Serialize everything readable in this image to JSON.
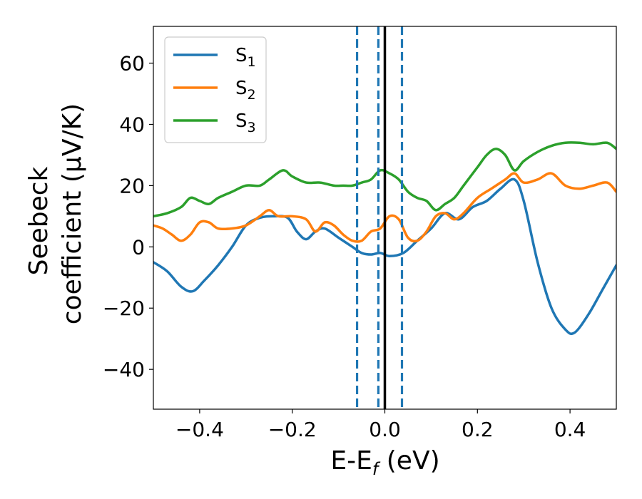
{
  "chart_data": {
    "type": "line",
    "xlabel": "E-E",
    "xlabel_sub": "f",
    "xlabel_unit": " (eV)",
    "ylabel_line1": "Seebeck",
    "ylabel_line2": "coefficient  (μV/K)",
    "xlim": [
      -0.5,
      0.5
    ],
    "ylim": [
      -53,
      72
    ],
    "xticks": [
      -0.4,
      -0.2,
      0.0,
      0.2,
      0.4
    ],
    "xtick_labels": [
      "−0.4",
      "−0.2",
      "0.0",
      "0.2",
      "0.4"
    ],
    "yticks": [
      -40,
      -20,
      0,
      20,
      40,
      60
    ],
    "ytick_labels": [
      "−40",
      "−20",
      "0",
      "20",
      "40",
      "60"
    ],
    "grid": false,
    "legend_position": "top-left",
    "vertical_lines": [
      {
        "x": -0.06,
        "style": "dashed",
        "color": "#1f77b4"
      },
      {
        "x": -0.014,
        "style": "dashed",
        "color": "#1f77b4"
      },
      {
        "x": 0.037,
        "style": "dashed",
        "color": "#1f77b4"
      },
      {
        "x": 0.0,
        "style": "solid",
        "color": "#000000"
      }
    ],
    "series": [
      {
        "name": "S",
        "sub": "1",
        "color": "#1f77b4",
        "x": [
          -0.5,
          -0.47,
          -0.44,
          -0.415,
          -0.39,
          -0.36,
          -0.33,
          -0.3,
          -0.27,
          -0.24,
          -0.21,
          -0.19,
          -0.17,
          -0.15,
          -0.13,
          -0.1,
          -0.07,
          -0.05,
          -0.03,
          -0.01,
          0.01,
          0.04,
          0.07,
          0.1,
          0.13,
          0.16,
          0.19,
          0.22,
          0.25,
          0.28,
          0.3,
          0.33,
          0.36,
          0.39,
          0.41,
          0.44,
          0.47,
          0.5
        ],
        "values": [
          -5,
          -8,
          -13,
          -14.5,
          -11,
          -6,
          0,
          7,
          9.5,
          10,
          9.5,
          5,
          2.5,
          5,
          6,
          3,
          0,
          -2,
          -2.5,
          -2,
          -3,
          -2,
          2,
          6,
          11,
          9,
          13,
          15,
          19,
          22,
          15,
          -5,
          -20,
          -27,
          -28,
          -22,
          -14,
          -6
        ]
      },
      {
        "name": "S",
        "sub": "2",
        "color": "#ff7f0e",
        "x": [
          -0.5,
          -0.48,
          -0.46,
          -0.44,
          -0.42,
          -0.4,
          -0.38,
          -0.36,
          -0.33,
          -0.3,
          -0.27,
          -0.25,
          -0.23,
          -0.2,
          -0.17,
          -0.15,
          -0.13,
          -0.11,
          -0.09,
          -0.07,
          -0.05,
          -0.03,
          -0.01,
          0.01,
          0.03,
          0.05,
          0.07,
          0.09,
          0.11,
          0.13,
          0.15,
          0.17,
          0.2,
          0.23,
          0.26,
          0.28,
          0.3,
          0.33,
          0.36,
          0.39,
          0.42,
          0.45,
          0.48,
          0.5
        ],
        "values": [
          7,
          6,
          4,
          2,
          4,
          8,
          8,
          6,
          6,
          7,
          10,
          12,
          10,
          10,
          9,
          5,
          8,
          7,
          4,
          2,
          2,
          5,
          6,
          10,
          9,
          3,
          2,
          5,
          10,
          11,
          9,
          11,
          16,
          19,
          22,
          24,
          21,
          22,
          24,
          20,
          19,
          20,
          21,
          18
        ]
      },
      {
        "name": "S",
        "sub": "3",
        "color": "#2ca02c",
        "x": [
          -0.5,
          -0.47,
          -0.44,
          -0.42,
          -0.4,
          -0.38,
          -0.36,
          -0.33,
          -0.3,
          -0.27,
          -0.25,
          -0.22,
          -0.2,
          -0.17,
          -0.14,
          -0.11,
          -0.09,
          -0.07,
          -0.05,
          -0.03,
          -0.01,
          0.01,
          0.03,
          0.05,
          0.07,
          0.09,
          0.11,
          0.13,
          0.15,
          0.17,
          0.2,
          0.22,
          0.24,
          0.26,
          0.28,
          0.3,
          0.33,
          0.36,
          0.39,
          0.42,
          0.45,
          0.48,
          0.5
        ],
        "values": [
          10,
          11,
          13,
          16,
          15,
          14,
          16,
          18,
          20,
          20,
          22,
          25,
          23,
          21,
          21,
          20,
          20,
          20,
          21,
          22,
          25,
          24,
          22,
          18,
          16,
          15,
          12,
          14,
          16,
          20,
          26,
          30,
          32,
          30,
          25,
          28,
          31,
          33,
          34,
          34,
          33.5,
          34,
          32
        ]
      }
    ]
  }
}
